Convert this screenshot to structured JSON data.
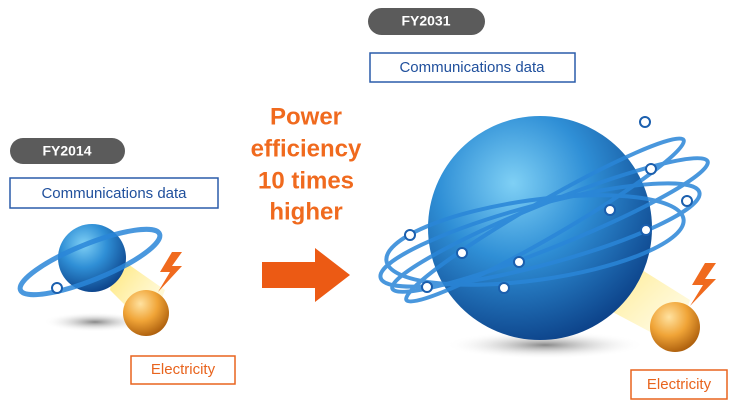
{
  "left": {
    "year": "FY2014",
    "communications_label": "Communications data",
    "electricity_label": "Electricity"
  },
  "center": {
    "lines": [
      "Power",
      "efficiency",
      "10 times",
      "higher"
    ]
  },
  "right": {
    "year": "FY2031",
    "communications_label": "Communications data",
    "electricity_label": "Electricity"
  }
}
